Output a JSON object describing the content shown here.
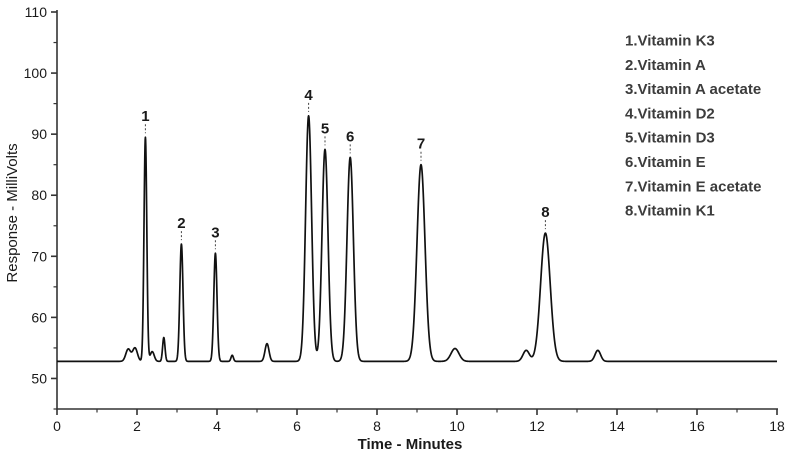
{
  "figure": {
    "background": "#ffffff",
    "trace_color": "#111111",
    "axis_color": "#333333",
    "text_color": "#1a1a1a",
    "legend_color": "#3c3c3c"
  },
  "chart_data": {
    "type": "line",
    "title": "",
    "xlabel": "Time - Minutes",
    "ylabel": "Response - MilliVolts",
    "xlim": [
      0,
      18
    ],
    "ylim": [
      45,
      110
    ],
    "x_major_ticks": [
      0,
      2,
      4,
      6,
      8,
      10,
      12,
      14,
      16,
      18
    ],
    "x_minor_ticks": [
      1,
      3,
      5,
      7,
      9,
      11,
      13,
      15,
      17
    ],
    "y_major_ticks": [
      50,
      60,
      70,
      80,
      90,
      100,
      110
    ],
    "y_minor_ticks": [
      45,
      55,
      65,
      75,
      85,
      95,
      105
    ],
    "grid": false,
    "legend_position": "top-right",
    "baseline_mV": 52.8,
    "peaks": [
      {
        "label": "1",
        "compound": "Vitamin K3",
        "time_min": 2.21,
        "apex_mV": 89.5,
        "sigma_min": 0.035
      },
      {
        "label": "2",
        "compound": "Vitamin A",
        "time_min": 3.11,
        "apex_mV": 72.0,
        "sigma_min": 0.04
      },
      {
        "label": "3",
        "compound": "Vitamin A acetate",
        "time_min": 3.96,
        "apex_mV": 70.5,
        "sigma_min": 0.04
      },
      {
        "label": "4",
        "compound": "Vitamin D2",
        "time_min": 6.29,
        "apex_mV": 93.0,
        "sigma_min": 0.075
      },
      {
        "label": "5",
        "compound": "Vitamin D3",
        "time_min": 6.7,
        "apex_mV": 87.5,
        "sigma_min": 0.075
      },
      {
        "label": "6",
        "compound": "Vitamin E",
        "time_min": 7.33,
        "apex_mV": 86.2,
        "sigma_min": 0.08
      },
      {
        "label": "7",
        "compound": "Vitamin E acetate",
        "time_min": 9.1,
        "apex_mV": 85.0,
        "sigma_min": 0.1
      },
      {
        "label": "8",
        "compound": "Vitamin K1",
        "time_min": 12.21,
        "apex_mV": 73.8,
        "sigma_min": 0.12
      }
    ],
    "minor_bumps": [
      {
        "time_min": 1.78,
        "apex_mV": 54.8,
        "sigma_min": 0.06
      },
      {
        "time_min": 1.95,
        "apex_mV": 55.0,
        "sigma_min": 0.06
      },
      {
        "time_min": 2.38,
        "apex_mV": 54.4,
        "sigma_min": 0.05
      },
      {
        "time_min": 2.67,
        "apex_mV": 56.7,
        "sigma_min": 0.03
      },
      {
        "time_min": 4.38,
        "apex_mV": 53.8,
        "sigma_min": 0.03
      },
      {
        "time_min": 5.25,
        "apex_mV": 55.7,
        "sigma_min": 0.05
      },
      {
        "time_min": 9.95,
        "apex_mV": 54.9,
        "sigma_min": 0.1
      },
      {
        "time_min": 11.73,
        "apex_mV": 54.6,
        "sigma_min": 0.08
      },
      {
        "time_min": 13.52,
        "apex_mV": 54.6,
        "sigma_min": 0.07
      }
    ],
    "legend": [
      "1.Vitamin K3",
      "2.Vitamin A",
      "3.Vitamin A acetate",
      "4.Vitamin D2",
      "5.Vitamin D3",
      "6.Vitamin E",
      "7.Vitamin E acetate",
      "8.Vitamin K1"
    ]
  }
}
